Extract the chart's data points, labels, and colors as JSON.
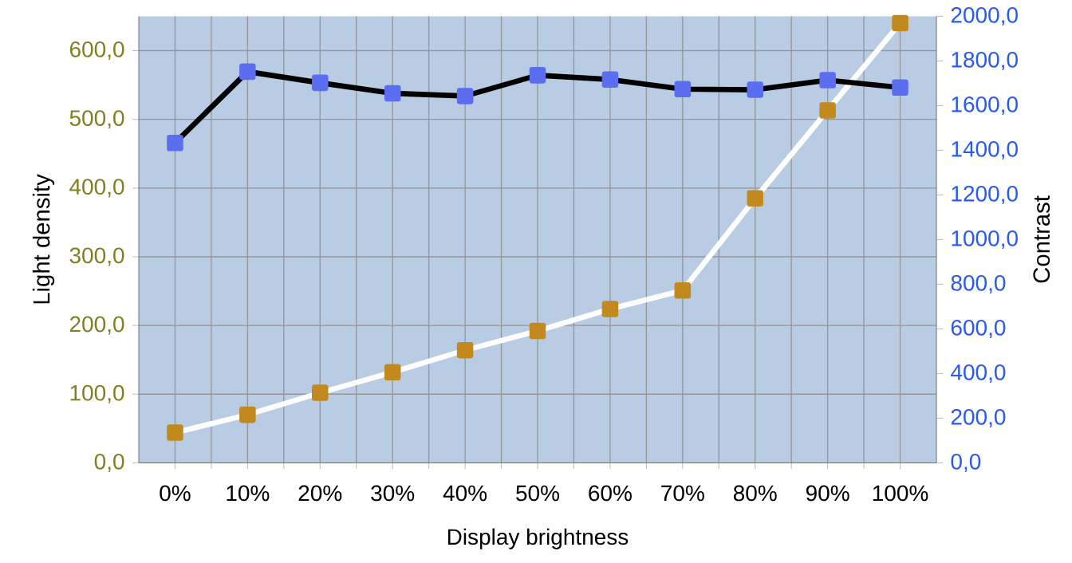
{
  "chart_data": {
    "type": "line",
    "xlabel": "Display brightness",
    "ylabel": "Light density",
    "y2label": "Contrast",
    "categories": [
      "0%",
      "10%",
      "20%",
      "30%",
      "40%",
      "50%",
      "60%",
      "70%",
      "80%",
      "90%",
      "100%"
    ],
    "series": [
      {
        "color": "#c28a1e",
        "values": [
          44,
          70,
          102,
          132,
          164,
          192,
          224,
          251,
          385,
          513,
          640
        ]
      },
      {
        "color": "#5b6ef0",
        "axis": "y2",
        "values": [
          1433,
          1752,
          1702,
          1655,
          1643,
          1736,
          1717,
          1674,
          1671,
          1714,
          1681
        ]
      }
    ],
    "ylim": [
      0,
      650
    ],
    "yticks": [
      {
        "value": 0,
        "label": "0,0"
      },
      {
        "value": 100,
        "label": "100,0"
      },
      {
        "value": 200,
        "label": "200,0"
      },
      {
        "value": 300,
        "label": "300,0"
      },
      {
        "value": 400,
        "label": "400,0"
      },
      {
        "value": 500,
        "label": "500,0"
      },
      {
        "value": 600,
        "label": "600,0"
      }
    ],
    "y2lim": [
      0,
      2000
    ],
    "y2ticks": [
      {
        "value": 0,
        "label": "0,0"
      },
      {
        "value": 200,
        "label": "200,0"
      },
      {
        "value": 400,
        "label": "400,0"
      },
      {
        "value": 600,
        "label": "600,0"
      },
      {
        "value": 800,
        "label": "800,0"
      },
      {
        "value": 1000,
        "label": "1000,0"
      },
      {
        "value": 1200,
        "label": "1200,0"
      },
      {
        "value": 1400,
        "label": "1400,0"
      },
      {
        "value": 1600,
        "label": "1600,0"
      },
      {
        "value": 1800,
        "label": "1800,0"
      },
      {
        "value": 2000,
        "label": "2000,0"
      }
    ],
    "grid": true,
    "marker": "square",
    "line_style": "solid"
  }
}
